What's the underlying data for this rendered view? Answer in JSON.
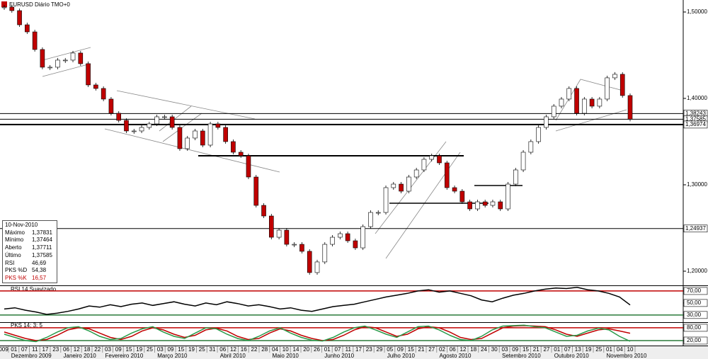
{
  "chart_data": [
    {
      "type": "candlestick",
      "title": "EURUSD Diário TMO+0",
      "closes": [
        1.5057,
        1.5016,
        1.4852,
        1.477,
        1.4566,
        1.4361,
        1.4361,
        1.4443,
        1.4443,
        1.4525,
        1.4402,
        1.4156,
        1.4115,
        1.3992,
        1.3828,
        1.3746,
        1.3623,
        1.3623,
        1.3664,
        1.3705,
        1.3787,
        1.3787,
        1.3664,
        1.3418,
        1.3541,
        1.3623,
        1.3459,
        1.3705,
        1.3664,
        1.35,
        1.3377,
        1.3336,
        1.309,
        1.2762,
        1.2639,
        1.2393,
        1.2475,
        1.2311,
        1.2311,
        1.223,
        1.1984,
        1.2107,
        1.2311,
        1.2393,
        1.2434,
        1.2352,
        1.227,
        1.2516,
        1.268,
        1.268,
        1.2967,
        1.3008,
        1.2926,
        1.309,
        1.3172,
        1.3295,
        1.3336,
        1.3254,
        1.2967,
        1.2926,
        1.2803,
        1.2721,
        1.2803,
        1.2762,
        1.2803,
        1.2721,
        1.3008,
        1.3172,
        1.3377,
        1.35,
        1.3664,
        1.3787,
        1.391,
        1.3992,
        1.4115,
        1.3828,
        1.3992,
        1.391,
        1.3992,
        1.4238,
        1.4279,
        1.4033,
        1.3759
      ],
      "up_color": "#ffffff",
      "down_color": "#c00000",
      "ylim": [
        1.1836,
        1.5139
      ],
      "yticks": [
        {
          "value": 1.5,
          "label": "1,50000"
        },
        {
          "value": 1.4,
          "label": "1,40000"
        },
        {
          "value": 1.3,
          "label": "1,30000"
        },
        {
          "value": 1.2,
          "label": "1,20000"
        }
      ],
      "levels": [
        {
          "value": 1.38243,
          "label": "1,38243"
        },
        {
          "value": 1.37585,
          "label": "1,37585"
        },
        {
          "value": 1.36974,
          "label": "1,36974"
        },
        {
          "value": 1.24937,
          "label": "1,24937"
        }
      ],
      "x_day_labels": [
        "009",
        "01",
        "07",
        "11",
        "17",
        "23",
        "06",
        "12",
        "18",
        "22",
        "03",
        "09",
        "15",
        "19",
        "25",
        "03",
        "09",
        "15",
        "19",
        "25",
        "31",
        "06",
        "12",
        "16",
        "22",
        "28",
        "04",
        "10",
        "14",
        "20",
        "26",
        "01",
        "07",
        "11",
        "17",
        "23",
        "29",
        "05",
        "09",
        "15",
        "21",
        "27",
        "02",
        "06",
        "12",
        "18",
        "24",
        "30",
        "03",
        "09",
        "15",
        "21",
        "27",
        "01",
        "07",
        "13",
        "19",
        "25",
        "01",
        "04",
        "10"
      ],
      "x_month_labels": [
        null,
        "Dezembro 2009",
        null,
        null,
        null,
        null,
        "Janeiro 2010",
        null,
        null,
        null,
        "Fevereiro 2010",
        null,
        null,
        null,
        null,
        "Março 2010",
        null,
        null,
        null,
        null,
        null,
        "Abril 2010",
        null,
        null,
        null,
        null,
        "Maio 2010",
        null,
        null,
        null,
        null,
        "Junho 2010",
        null,
        null,
        null,
        null,
        null,
        "Julho 2010",
        null,
        null,
        null,
        null,
        "Agosto 2010",
        null,
        null,
        null,
        null,
        null,
        "Setembro 2010",
        null,
        null,
        null,
        null,
        "Outubro 2010",
        null,
        null,
        null,
        null,
        "Novembro 2010",
        null,
        null
      ]
    },
    {
      "type": "line",
      "title": "RSI 14 Suavizado",
      "ylim": [
        18,
        77
      ],
      "yticks": [
        {
          "value": 70,
          "label": "70,00"
        },
        {
          "value": 50,
          "label": "50,00"
        },
        {
          "value": 30,
          "label": "30,00"
        }
      ],
      "bands": [
        {
          "value": 70,
          "color": "#c00000"
        },
        {
          "value": 30,
          "color": "#2a7a3a"
        }
      ],
      "series": [
        {
          "name": "RSI",
          "color": "#000000",
          "values": [
            40,
            42,
            38,
            35,
            31,
            33,
            36,
            40,
            45,
            43,
            47,
            44,
            48,
            50,
            46,
            49,
            52,
            48,
            45,
            50,
            47,
            52,
            49,
            45,
            47,
            44,
            40,
            42,
            38,
            36,
            40,
            44,
            46,
            48,
            52,
            56,
            60,
            63,
            66,
            70,
            72,
            68,
            70,
            66,
            62,
            55,
            52,
            58,
            63,
            66,
            70,
            73,
            75,
            74,
            76,
            72,
            70,
            66,
            60,
            46.69
          ]
        }
      ]
    },
    {
      "type": "line",
      "title": "PKS 14; 3; 5",
      "ylim": [
        0,
        103
      ],
      "yticks": [
        {
          "value": 80,
          "label": "80,00"
        },
        {
          "value": 20,
          "label": "20,00"
        }
      ],
      "bands": [
        {
          "value": 80,
          "color": "#c00000"
        },
        {
          "value": 20,
          "color": "#2a7a3a"
        }
      ],
      "series": [
        {
          "name": "PKS %D",
          "color": "#c00000",
          "values": [
            60,
            45,
            30,
            20,
            25,
            45,
            70,
            80,
            75,
            55,
            35,
            25,
            40,
            65,
            80,
            70,
            50,
            35,
            45,
            70,
            78,
            65,
            40,
            25,
            30,
            55,
            75,
            65,
            45,
            30,
            20,
            25,
            45,
            70,
            85,
            80,
            60,
            40,
            50,
            75,
            85,
            80,
            60,
            35,
            25,
            30,
            55,
            80,
            88,
            90,
            88,
            85,
            70,
            50,
            40,
            55,
            70,
            75,
            65,
            54.38
          ]
        },
        {
          "name": "PKS %K",
          "color": "#2a9a4a",
          "values": [
            50,
            35,
            20,
            15,
            35,
            60,
            80,
            85,
            65,
            40,
            25,
            30,
            55,
            75,
            85,
            60,
            40,
            30,
            55,
            80,
            75,
            50,
            30,
            20,
            40,
            65,
            80,
            55,
            35,
            22,
            18,
            35,
            60,
            80,
            88,
            70,
            50,
            35,
            60,
            85,
            88,
            70,
            45,
            25,
            20,
            40,
            70,
            88,
            90,
            92,
            85,
            80,
            60,
            40,
            45,
            65,
            78,
            70,
            40,
            16.57
          ]
        }
      ]
    }
  ],
  "info_box": {
    "date": "10-Nov-2010",
    "rows": [
      [
        "Máximo",
        "1,37831"
      ],
      [
        "Mínimo",
        "1,37464"
      ],
      [
        "Aberto",
        "1,37711"
      ],
      [
        "Último",
        "1,37585"
      ],
      [
        "RSI",
        "46,69"
      ],
      [
        "PKS %D",
        "54,38"
      ],
      [
        "PKS %K",
        "16,57"
      ]
    ]
  }
}
